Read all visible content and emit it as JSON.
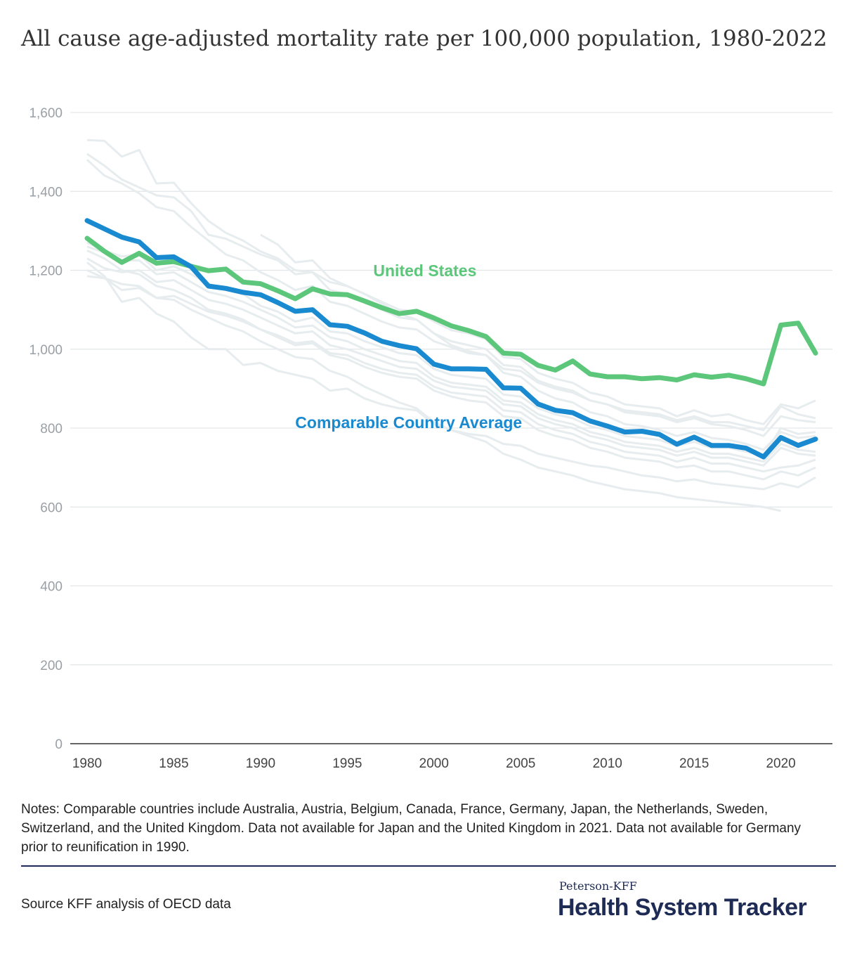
{
  "title": "All cause age-adjusted mortality rate per 100,000 population, 1980-2022",
  "notes": "Notes: Comparable countries include Australia, Austria, Belgium, Canada, France, Germany, Japan, the Netherlands, Sweden, Switzerland, and the United Kingdom. Data not available for Japan and the United Kingdom in 2021. Data not available for Germany prior to reunification in 1990.",
  "source": "Source KFF analysis of OECD data",
  "brand": {
    "small": "Peterson-KFF",
    "big": "Health System Tracker"
  },
  "colors": {
    "us": "#5cc77a",
    "avg": "#1a8ad0",
    "background_lines": "#e7ecef",
    "grid": "#e3e6e9",
    "brand": "#1d2b55"
  },
  "chart_data": {
    "type": "line",
    "title": "All cause age-adjusted mortality rate per 100,000 population, 1980-2022",
    "xlabel": "",
    "ylabel": "",
    "xlim": [
      1980,
      2022
    ],
    "ylim": [
      0,
      1600
    ],
    "yticks": [
      0,
      200,
      400,
      600,
      800,
      1000,
      1200,
      1400,
      1600
    ],
    "ytick_labels": [
      "0",
      "200",
      "400",
      "600",
      "800",
      "1,000",
      "1,200",
      "1,400",
      "1,600"
    ],
    "xticks": [
      1980,
      1985,
      1990,
      1995,
      2000,
      2005,
      2010,
      2015,
      2020
    ],
    "xtick_labels": [
      "1980",
      "1985",
      "1990",
      "1995",
      "2000",
      "2005",
      "2010",
      "2015",
      "2020"
    ],
    "grid": true,
    "x": [
      1980,
      1981,
      1982,
      1983,
      1984,
      1985,
      1986,
      1987,
      1988,
      1989,
      1990,
      1991,
      1992,
      1993,
      1994,
      1995,
      1996,
      1997,
      1998,
      1999,
      2000,
      2001,
      2002,
      2003,
      2004,
      2005,
      2006,
      2007,
      2008,
      2009,
      2010,
      2011,
      2012,
      2013,
      2014,
      2015,
      2016,
      2017,
      2018,
      2019,
      2020,
      2021,
      2022
    ],
    "series": [
      {
        "name": "United States",
        "role": "us",
        "values": [
          1281,
          1248,
          1220,
          1243,
          1218,
          1222,
          1210,
          1199,
          1203,
          1170,
          1166,
          1148,
          1128,
          1153,
          1140,
          1138,
          1122,
          1105,
          1090,
          1096,
          1079,
          1059,
          1047,
          1032,
          990,
          987,
          959,
          947,
          970,
          937,
          930,
          930,
          925,
          928,
          922,
          935,
          929,
          934,
          925,
          912,
          1061,
          1066,
          990
        ]
      },
      {
        "name": "Comparable Country Average",
        "role": "avg",
        "values": [
          1326,
          1305,
          1284,
          1272,
          1232,
          1234,
          1209,
          1160,
          1154,
          1144,
          1138,
          1118,
          1096,
          1100,
          1062,
          1058,
          1041,
          1020,
          1009,
          1001,
          962,
          950,
          950,
          949,
          902,
          901,
          861,
          845,
          839,
          818,
          805,
          790,
          792,
          784,
          759,
          777,
          756,
          756,
          749,
          727,
          776,
          756,
          772
        ]
      },
      {
        "values": [
          1530,
          1528,
          1488,
          1505,
          1420,
          1422,
          1370,
          1325,
          1295,
          1275,
          1248,
          1230,
          1200,
          1195,
          1170,
          1160,
          1140,
          1120,
          1100,
          1095,
          1070,
          1048,
          1040,
          1025,
          980,
          975,
          940,
          925,
          915,
          890,
          880,
          860,
          855,
          850,
          830,
          845,
          830,
          835,
          820,
          810,
          860,
          850,
          870
        ]
      },
      {
        "values": [
          1495,
          1465,
          1430,
          1410,
          1390,
          1385,
          1350,
          1290,
          1280,
          1260,
          1240,
          1225,
          1190,
          1195,
          1150,
          1140,
          1120,
          1100,
          1080,
          1075,
          1040,
          1020,
          1010,
          1000,
          960,
          955,
          920,
          905,
          895,
          870,
          860,
          840,
          835,
          830,
          815,
          825,
          810,
          805,
          795,
          780,
          830,
          820,
          815
        ]
      },
      {
        "values": [
          1480,
          1440,
          1420,
          1395,
          1360,
          1350,
          1310,
          1275,
          1240,
          1225,
          1195,
          1175,
          1150,
          1160,
          1120,
          1110,
          1090,
          1070,
          1055,
          1050,
          1020,
          1005,
          990,
          985,
          950,
          945,
          915,
          900,
          890,
          870,
          860,
          845,
          840,
          835,
          820,
          830,
          815,
          815,
          805,
          795,
          855,
          835,
          825
        ]
      },
      {
        "values": [
          1270,
          1250,
          1235,
          1240,
          1200,
          1210,
          1190,
          1165,
          1150,
          1140,
          1110,
          1095,
          1070,
          1080,
          1045,
          1040,
          1020,
          1005,
          990,
          985,
          950,
          935,
          930,
          925,
          885,
          880,
          850,
          835,
          825,
          805,
          795,
          780,
          775,
          770,
          755,
          765,
          750,
          750,
          740,
          730,
          800,
          785,
          790
        ]
      },
      {
        "values": [
          1260,
          1245,
          1225,
          1225,
          1190,
          1195,
          1170,
          1145,
          1135,
          1120,
          1100,
          1080,
          1055,
          1060,
          1030,
          1020,
          1000,
          985,
          970,
          965,
          930,
          915,
          910,
          905,
          870,
          865,
          835,
          820,
          810,
          790,
          780,
          765,
          760,
          755,
          740,
          750,
          735,
          735,
          725,
          715,
          760,
          745,
          740
        ]
      },
      {
        "values": [
          1230,
          1205,
          1195,
          1200,
          1170,
          1175,
          1150,
          1125,
          1115,
          1100,
          1080,
          1060,
          1040,
          1045,
          1010,
          1000,
          985,
          970,
          955,
          950,
          920,
          905,
          900,
          895,
          860,
          855,
          825,
          810,
          800,
          780,
          770,
          755,
          750,
          745,
          730,
          740,
          725,
          725,
          715,
          705,
          750,
          735,
          730
        ]
      },
      {
        "values": [
          1185,
          1180,
          1150,
          1155,
          1130,
          1135,
          1115,
          1095,
          1085,
          1070,
          1050,
          1035,
          1015,
          1020,
          990,
          985,
          965,
          950,
          940,
          935,
          905,
          890,
          885,
          880,
          845,
          840,
          810,
          795,
          785,
          765,
          755,
          740,
          735,
          730,
          715,
          725,
          710,
          710,
          700,
          690,
          700,
          705,
          720
        ]
      },
      {
        "values": [
          1220,
          1185,
          1120,
          1130,
          1090,
          1070,
          1030,
          1000,
          1000,
          960,
          965,
          945,
          935,
          925,
          895,
          900,
          875,
          860,
          850,
          845,
          810,
          795,
          785,
          780,
          760,
          755,
          735,
          725,
          715,
          705,
          700,
          690,
          680,
          675,
          665,
          670,
          660,
          655,
          650,
          645,
          660,
          650,
          675
        ]
      },
      {
        "values": [
          1250,
          1230,
          1200,
          1190,
          1160,
          1150,
          1130,
          1100,
          1090,
          1075,
          1050,
          1030,
          1010,
          1015,
          985,
          975,
          955,
          940,
          930,
          925,
          895,
          880,
          870,
          865,
          830,
          825,
          795,
          780,
          770,
          750,
          740,
          725,
          720,
          715,
          700,
          705,
          690,
          690,
          680,
          670,
          690,
          680,
          700
        ]
      },
      {
        "values": [
          null,
          null,
          null,
          null,
          null,
          null,
          null,
          null,
          null,
          null,
          1290,
          1265,
          1220,
          1225,
          1180,
          1160,
          1140,
          1115,
          1090,
          1075,
          1040,
          1010,
          995,
          985,
          940,
          930,
          895,
          875,
          865,
          840,
          830,
          810,
          805,
          795,
          780,
          790,
          775,
          770,
          760,
          745,
          790,
          775,
          780
        ]
      },
      {
        "values": [
          1200,
          1180,
          1165,
          1160,
          1130,
          1125,
          1100,
          1080,
          1060,
          1045,
          1020,
          1000,
          980,
          975,
          945,
          930,
          905,
          885,
          865,
          850,
          815,
          795,
          780,
          765,
          735,
          720,
          700,
          690,
          680,
          665,
          655,
          645,
          640,
          635,
          625,
          620,
          615,
          610,
          605,
          600,
          590,
          null,
          null
        ]
      }
    ],
    "annotations": [
      {
        "text": "United States",
        "series": "us",
        "x": 1996.5,
        "y": 1185
      },
      {
        "text": "Comparable Country Average",
        "series": "avg",
        "x": 1992,
        "y": 800
      }
    ]
  }
}
